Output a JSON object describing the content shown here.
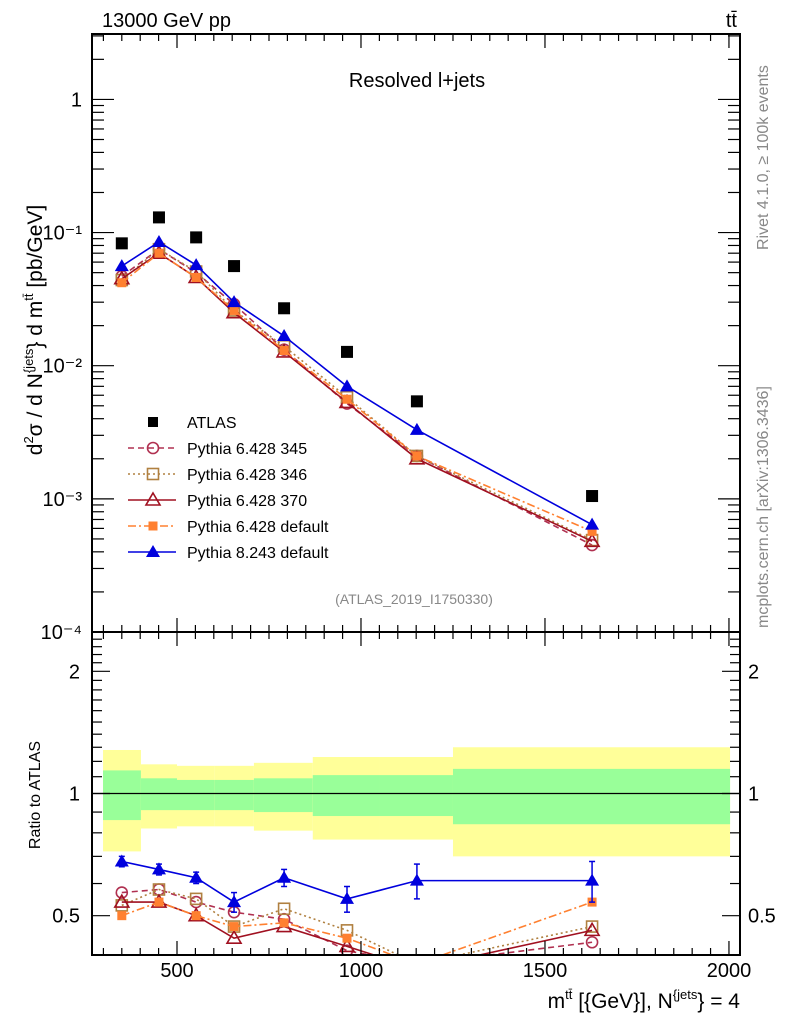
{
  "header": {
    "left": "13000 GeV pp",
    "right": "tt̄"
  },
  "side_labels": {
    "rivet": "Rivet 4.1.0, ≥ 100k events",
    "mcplots": "mcplots.cern.ch [arXiv:1306.3436]"
  },
  "chart_data": [
    {
      "type": "scatter",
      "title": "Resolved l+jets",
      "watermark": "(ATLAS_2019_I1750330)",
      "ylabel": "d²σ / d N^{jets} d m^{tt̄} [pb/GeV]",
      "yscale": "log",
      "ylim": [
        0.0001,
        3.1
      ],
      "xlim": [
        269,
        2030
      ],
      "yticks": [
        {
          "v": 1,
          "label": "1"
        },
        {
          "v": 0.1,
          "label": "10⁻¹"
        },
        {
          "v": 0.01,
          "label": "10⁻²"
        },
        {
          "v": 0.001,
          "label": "10⁻³"
        },
        {
          "v": 0.0001,
          "label": "10⁻⁴"
        }
      ],
      "legend_position": "lower-left",
      "x": [
        350,
        451,
        552,
        655,
        791,
        962,
        1152,
        1628
      ],
      "series": [
        {
          "name": "ATLAS",
          "values": [
            0.083,
            0.13,
            0.092,
            0.056,
            0.027,
            0.0127,
            0.0054,
            0.00105
          ],
          "color": "#000000",
          "marker": "filled-square",
          "line": "none"
        },
        {
          "name": "Pythia 6.428 345",
          "values": [
            0.047,
            0.075,
            0.05,
            0.029,
            0.0132,
            0.0052,
            0.0021,
            0.00045
          ],
          "color": "#b03050",
          "marker": "open-circle",
          "line": "dashed"
        },
        {
          "name": "Pythia 6.428 346",
          "values": [
            0.044,
            0.075,
            0.051,
            0.026,
            0.014,
            0.0058,
            0.0021,
            0.00049
          ],
          "color": "#b08040",
          "marker": "open-square",
          "line": "dotted"
        },
        {
          "name": "Pythia 6.428 370",
          "values": [
            0.045,
            0.07,
            0.046,
            0.025,
            0.0127,
            0.0053,
            0.002,
            0.00048
          ],
          "color": "#a01020",
          "marker": "open-triangle",
          "line": "solid"
        },
        {
          "name": "Pythia 6.428 default",
          "values": [
            0.042,
            0.07,
            0.046,
            0.026,
            0.013,
            0.0056,
            0.0021,
            0.00057
          ],
          "color": "#ff8030",
          "marker": "filled-square-small",
          "line": "dashdot"
        },
        {
          "name": "Pythia 8.243 default",
          "values": [
            0.056,
            0.085,
            0.057,
            0.03,
            0.0167,
            0.007,
            0.0033,
            0.00064
          ],
          "color": "#0000dd",
          "marker": "filled-triangle",
          "line": "solid"
        }
      ]
    },
    {
      "type": "scatter",
      "ylabel": "Ratio to ATLAS",
      "xlabel": "m^{tt̄} [{GeV}], N^{jets} = 4",
      "yscale": "log",
      "ylim": [
        0.4,
        2.5
      ],
      "xlim": [
        269,
        2030
      ],
      "xticks": [
        500,
        1000,
        1500,
        2000
      ],
      "yticks": [
        {
          "v": 0.5,
          "label": "0.5"
        },
        {
          "v": 1,
          "label": "1"
        },
        {
          "v": 2,
          "label": "2"
        }
      ],
      "bins": [
        299,
        402,
        500,
        601,
        709,
        869,
        1049,
        1250,
        2003
      ],
      "band_inner": {
        "color": "#99ff99",
        "up": [
          1.14,
          1.09,
          1.08,
          1.08,
          1.09,
          1.11,
          1.11,
          1.15
        ],
        "down": [
          0.86,
          0.91,
          0.91,
          0.91,
          0.9,
          0.88,
          0.88,
          0.84
        ]
      },
      "band_outer": {
        "color": "#ffff99",
        "up": [
          1.28,
          1.18,
          1.17,
          1.17,
          1.19,
          1.23,
          1.23,
          1.3
        ],
        "down": [
          0.72,
          0.82,
          0.83,
          0.83,
          0.81,
          0.77,
          0.77,
          0.7
        ]
      },
      "x": [
        350,
        451,
        552,
        655,
        791,
        962,
        1152,
        1628
      ],
      "series": [
        {
          "name": "Pythia 6.428 345",
          "values": [
            0.57,
            0.58,
            0.54,
            0.51,
            0.49,
            0.41,
            0.38,
            0.43
          ],
          "color": "#b03050",
          "marker": "open-circle",
          "line": "dashed"
        },
        {
          "name": "Pythia 6.428 346",
          "values": [
            0.53,
            0.58,
            0.55,
            0.47,
            0.52,
            0.46,
            0.38,
            0.47
          ],
          "color": "#b08040",
          "marker": "open-square",
          "line": "dotted"
        },
        {
          "name": "Pythia 6.428 370",
          "values": [
            0.54,
            0.54,
            0.5,
            0.44,
            0.47,
            0.42,
            0.37,
            0.46
          ],
          "color": "#a01020",
          "marker": "open-triangle",
          "line": "solid"
        },
        {
          "name": "Pythia 6.428 default",
          "values": [
            0.5,
            0.54,
            0.5,
            0.47,
            0.48,
            0.44,
            0.38,
            0.54
          ],
          "color": "#ff8030",
          "marker": "filled-square-small",
          "line": "dashdot"
        },
        {
          "name": "Pythia 8.243 default",
          "values": [
            0.68,
            0.65,
            0.62,
            0.54,
            0.62,
            0.55,
            0.61,
            0.61
          ],
          "errors": [
            0.02,
            0.02,
            0.02,
            0.03,
            0.03,
            0.04,
            0.06,
            0.07
          ],
          "color": "#0000dd",
          "marker": "filled-triangle",
          "line": "solid"
        }
      ]
    }
  ]
}
